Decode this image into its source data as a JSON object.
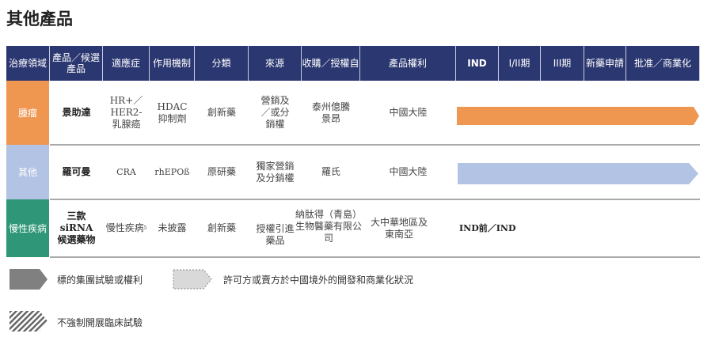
{
  "title": "其他產品",
  "headers": [
    "治療領域",
    "產品／候選產品",
    "適應症",
    "作用機制",
    "分類",
    "來源",
    "收購／授權自",
    "產品權利",
    "IND",
    "I/II期",
    "III期",
    "新藥申請",
    "批准／商業化"
  ],
  "rows": [
    {
      "area": "腫瘤",
      "area_color": "#ef9650",
      "product": "景助達",
      "indication": "HR+／HER2-乳腺癌",
      "mechanism": "HDAC抑制劑",
      "category": "創新藥",
      "source": "營銷及／或分銷權",
      "from": "泰州億騰景昂",
      "rights": "中國大陸",
      "stage": "批准／商業化",
      "bar_color": "#ef9650"
    },
    {
      "area": "其他",
      "area_color": "#b3c3e3",
      "product": "羅可曼",
      "indication": "CRA",
      "mechanism": "rhEPOß",
      "category": "原研藥",
      "source": "獨家營銷及分銷權",
      "from": "羅氏",
      "rights": "中國大陸",
      "stage": "批准／商業化",
      "bar_color": "#b3c3e3"
    },
    {
      "area": "慢性疾病",
      "area_color": "#2f9677",
      "product_lines": [
        "三款",
        "siRNA",
        "候選藥物"
      ],
      "indication": "慢性疾病",
      "indication_sup": "5",
      "mechanism": "未披露",
      "category": "創新藥",
      "source": "授權引進藥品",
      "from": "納肽得（青島）生物醫藥有限公司",
      "rights": "大中華地區及東南亞",
      "stage_text": "IND前／IND"
    }
  ],
  "legend": [
    {
      "icon": "solid-gray-arrow",
      "label": "標的集團試驗或權利"
    },
    {
      "icon": "dashed-light-arrow",
      "label": "許可方或賣方於中國境外的開發和商業化狀況"
    },
    {
      "icon": "hatched-arrow",
      "label": "不強制開展臨床試驗"
    }
  ]
}
